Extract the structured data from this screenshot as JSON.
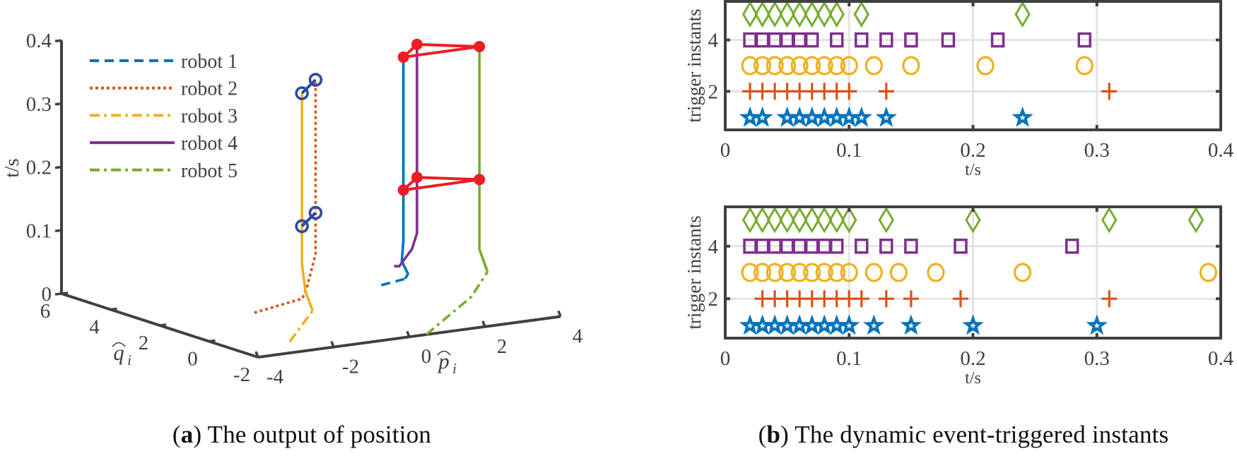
{
  "captions": {
    "a_label": "a",
    "a_text": "The output of position",
    "b_label": "b",
    "b_text": "The dynamic event-triggered instants"
  },
  "chart_data": [
    {
      "type": "line3d",
      "title": "The output of position",
      "xlabel": {
        "symbol": "p",
        "subscript": "i"
      },
      "ylabel": {
        "symbol": "q",
        "subscript": "i"
      },
      "zlabel": "t/s",
      "xlim": [
        -4,
        4
      ],
      "ylim": [
        -2,
        6
      ],
      "zlim": [
        0,
        0.4
      ],
      "xticks": [
        "-4",
        "-2",
        "0",
        "2",
        "4"
      ],
      "xtick_values": [
        -4,
        -2,
        0,
        2,
        4
      ],
      "yticks": [
        "-2",
        "0",
        "2",
        "4",
        "6"
      ],
      "ytick_values": [
        -2,
        0,
        2,
        4,
        6
      ],
      "zticks": [
        "0",
        "0.1",
        "0.2",
        "0.3",
        "0.4"
      ],
      "ztick_values": [
        0,
        0.1,
        0.2,
        0.3,
        0.4
      ],
      "legend_position": "top-left",
      "series": [
        {
          "name": "robot 1",
          "color": "#0072BD",
          "style": "dashed",
          "styled_until_t": 0.01,
          "points": [
            [
              2.46,
              2.93,
              0
            ],
            [
              2.91,
              2.65,
              0.01
            ],
            [
              2.7,
              2.21,
              0.025
            ],
            [
              2.4,
              2.0,
              0.05
            ],
            [
              2.15,
              1.55,
              0.09
            ],
            [
              2.15,
              1.55,
              0.38
            ]
          ]
        },
        {
          "name": "robot 2",
          "color": "#D95319",
          "style": "dotted",
          "styled_until_t": 0.33,
          "points": [
            [
              -1.5,
              2.0,
              0
            ],
            [
              -0.15,
              2.12,
              0.01
            ],
            [
              0.13,
              2.35,
              0.025
            ],
            [
              1.03,
              3.4,
              0.055
            ],
            [
              1.03,
              3.4,
              0.33
            ]
          ]
        },
        {
          "name": "robot 3",
          "color": "#EDB120",
          "style": "dashdot",
          "styled_until_t": 0.015,
          "points": [
            [
              -2.51,
              -1.0,
              0
            ],
            [
              -0.84,
              0.64,
              0.015
            ],
            [
              -0.42,
              1.58,
              0.03
            ],
            [
              0,
              2.37,
              0.061
            ],
            [
              0,
              2.37,
              0.33
            ]
          ]
        },
        {
          "name": "robot 4",
          "color": "#7E2F8E",
          "style": "solid",
          "styled_until_t": 0,
          "points": [
            [
              3.8,
              4.47,
              0
            ],
            [
              3.79,
              4.24,
              0.003
            ],
            [
              4.02,
              4.08,
              0.03
            ],
            [
              3.14,
              2.52,
              0.082
            ],
            [
              3.14,
              2.52,
              0.38
            ]
          ]
        },
        {
          "name": "robot 5",
          "color": "#77AC30",
          "style": "dashdot",
          "styled_until_t": 0.025,
          "points": [
            [
              0.45,
              -2.0,
              0
            ],
            [
              3.13,
              0.28,
              0.01
            ],
            [
              4.31,
              1.45,
              0.025
            ],
            [
              4.18,
              1.58,
              0.06
            ],
            [
              4.18,
              1.58,
              0.38
            ]
          ]
        }
      ],
      "formations": [
        {
          "robots": [
            1,
            4,
            5
          ],
          "t": 0.38,
          "color": "#EE1C25",
          "marker": "filled-circle"
        },
        {
          "robots": [
            1,
            4,
            5
          ],
          "t": 0.17,
          "color": "#EE1C25",
          "marker": "filled-circle"
        },
        {
          "robots": [
            3,
            2
          ],
          "t": 0.33,
          "color": "#2E4A9E",
          "marker": "open-circle"
        },
        {
          "robots": [
            3,
            2
          ],
          "t": 0.12,
          "color": "#2E4A9E",
          "marker": "open-circle"
        }
      ]
    },
    {
      "type": "scatter",
      "panel": "top",
      "xlabel": "t/s",
      "ylabel": "trigger instants",
      "xlim": [
        0,
        0.4
      ],
      "ylim": [
        0.5,
        5.5
      ],
      "xticks": [
        "0",
        "0.1",
        "0.2",
        "0.3",
        "0.4"
      ],
      "xtick_values": [
        0,
        0.1,
        0.2,
        0.3,
        0.4
      ],
      "yticks": [
        "2",
        "4"
      ],
      "ytick_values": [
        2,
        4
      ],
      "grid": true,
      "series": [
        {
          "name": "robot 1",
          "y": 1,
          "marker": "star",
          "color": "#0072BD",
          "x": [
            0.02,
            0.03,
            0.05,
            0.06,
            0.07,
            0.08,
            0.09,
            0.1,
            0.11,
            0.13,
            0.24
          ]
        },
        {
          "name": "robot 2",
          "y": 2,
          "marker": "plus",
          "color": "#D95319",
          "x": [
            0.02,
            0.03,
            0.04,
            0.05,
            0.06,
            0.07,
            0.08,
            0.09,
            0.1,
            0.13,
            0.31
          ]
        },
        {
          "name": "robot 3",
          "y": 3,
          "marker": "circle",
          "color": "#EDB120",
          "x": [
            0.02,
            0.03,
            0.04,
            0.05,
            0.06,
            0.07,
            0.08,
            0.09,
            0.1,
            0.12,
            0.15,
            0.21,
            0.29
          ]
        },
        {
          "name": "robot 4",
          "y": 4,
          "marker": "square",
          "color": "#7E2F8E",
          "x": [
            0.02,
            0.03,
            0.04,
            0.05,
            0.06,
            0.07,
            0.09,
            0.11,
            0.13,
            0.15,
            0.18,
            0.22,
            0.29
          ]
        },
        {
          "name": "robot 5",
          "y": 5,
          "marker": "diamond",
          "color": "#77AC30",
          "x": [
            0.02,
            0.03,
            0.04,
            0.05,
            0.06,
            0.07,
            0.08,
            0.09,
            0.11,
            0.24
          ]
        }
      ]
    },
    {
      "type": "scatter",
      "panel": "bottom",
      "xlabel": "t/s",
      "ylabel": "trigger instants",
      "xlim": [
        0,
        0.4
      ],
      "ylim": [
        0.5,
        5.5
      ],
      "xticks": [
        "0",
        "0.1",
        "0.2",
        "0.3",
        "0.4"
      ],
      "xtick_values": [
        0,
        0.1,
        0.2,
        0.3,
        0.4
      ],
      "yticks": [
        "2",
        "4"
      ],
      "ytick_values": [
        2,
        4
      ],
      "grid": true,
      "series": [
        {
          "name": "robot 1",
          "y": 1,
          "marker": "star",
          "color": "#0072BD",
          "x": [
            0.02,
            0.03,
            0.04,
            0.05,
            0.06,
            0.07,
            0.08,
            0.09,
            0.1,
            0.12,
            0.15,
            0.2,
            0.3
          ]
        },
        {
          "name": "robot 2",
          "y": 2,
          "marker": "plus",
          "color": "#D95319",
          "x": [
            0.03,
            0.04,
            0.05,
            0.06,
            0.07,
            0.08,
            0.09,
            0.1,
            0.11,
            0.13,
            0.15,
            0.19,
            0.31
          ]
        },
        {
          "name": "robot 3",
          "y": 3,
          "marker": "circle",
          "color": "#EDB120",
          "x": [
            0.02,
            0.03,
            0.04,
            0.05,
            0.06,
            0.07,
            0.08,
            0.09,
            0.1,
            0.12,
            0.14,
            0.17,
            0.24,
            0.39
          ]
        },
        {
          "name": "robot 4",
          "y": 4,
          "marker": "square",
          "color": "#7E2F8E",
          "x": [
            0.02,
            0.03,
            0.04,
            0.05,
            0.06,
            0.07,
            0.08,
            0.09,
            0.11,
            0.13,
            0.15,
            0.19,
            0.28
          ]
        },
        {
          "name": "robot 5",
          "y": 5,
          "marker": "diamond",
          "color": "#77AC30",
          "x": [
            0.02,
            0.03,
            0.04,
            0.05,
            0.06,
            0.07,
            0.08,
            0.09,
            0.1,
            0.13,
            0.2,
            0.31,
            0.38
          ]
        }
      ]
    }
  ]
}
